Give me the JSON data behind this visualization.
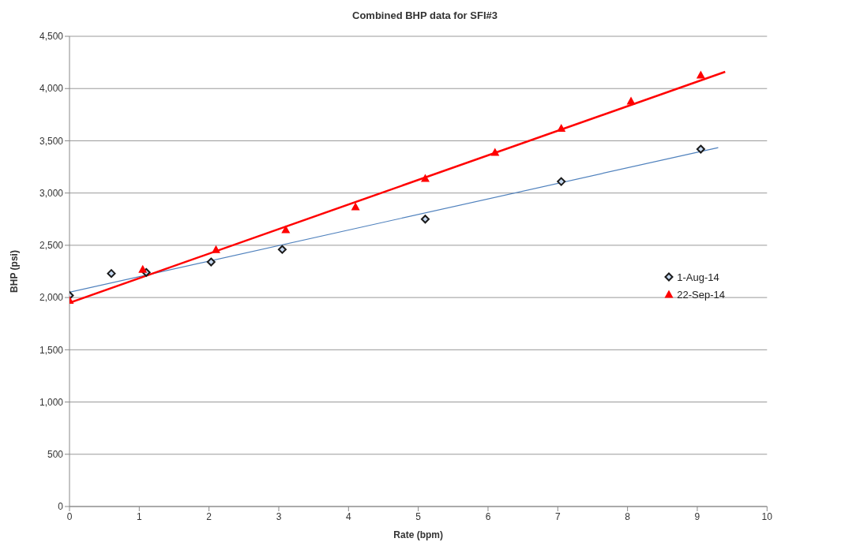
{
  "chart_data": {
    "type": "scatter",
    "title": "Combined BHP data for SFI#3",
    "xlabel": "Rate (bpm)",
    "ylabel": "BHP (psi)",
    "xlim": [
      0,
      10
    ],
    "xticks": [
      0,
      1,
      2,
      3,
      4,
      5,
      6,
      7,
      8,
      9,
      10
    ],
    "ylim": [
      0,
      4500
    ],
    "yticks": [
      0,
      500,
      {
        "value": 1000,
        "label": "1,000"
      },
      {
        "value": 1500,
        "label": "1,500"
      },
      {
        "value": 2000,
        "label": "2,000"
      },
      {
        "value": 2500,
        "label": "2,500"
      },
      {
        "value": 3000,
        "label": "3,000"
      },
      {
        "value": 3500,
        "label": "3,500"
      },
      {
        "value": 4000,
        "label": "4,000"
      },
      {
        "value": 4500,
        "label": "4,500"
      }
    ],
    "grid": "y",
    "legend": "right",
    "series": [
      {
        "name": "1-Aug-14",
        "color": "#1a1a1a",
        "marker": "diamond",
        "x": [
          0,
          0.6,
          1.1,
          2.03,
          3.05,
          5.1,
          7.05,
          9.05
        ],
        "values": [
          2020,
          2230,
          2240,
          2340,
          2460,
          2750,
          3110,
          3420
        ]
      },
      {
        "name": "22-Sep-14",
        "color": "#ff0000",
        "marker": "triangle",
        "x": [
          0,
          1.05,
          2.1,
          3.1,
          4.1,
          5.1,
          6.1,
          7.05,
          8.05,
          9.05
        ],
        "values": [
          1975,
          2270,
          2460,
          2650,
          2870,
          3140,
          3390,
          3620,
          3880,
          4130
        ]
      },
      {
        "type": "line",
        "color": "#4f81bd",
        "marker": "none",
        "line_style": "solid",
        "x": [
          0,
          9.3
        ],
        "values": [
          2050,
          3435
        ]
      },
      {
        "type": "line",
        "color": "#ff0000",
        "marker": "none",
        "line_style": "solid",
        "x": [
          0,
          9.4
        ],
        "values": [
          1950,
          4160
        ]
      }
    ]
  }
}
